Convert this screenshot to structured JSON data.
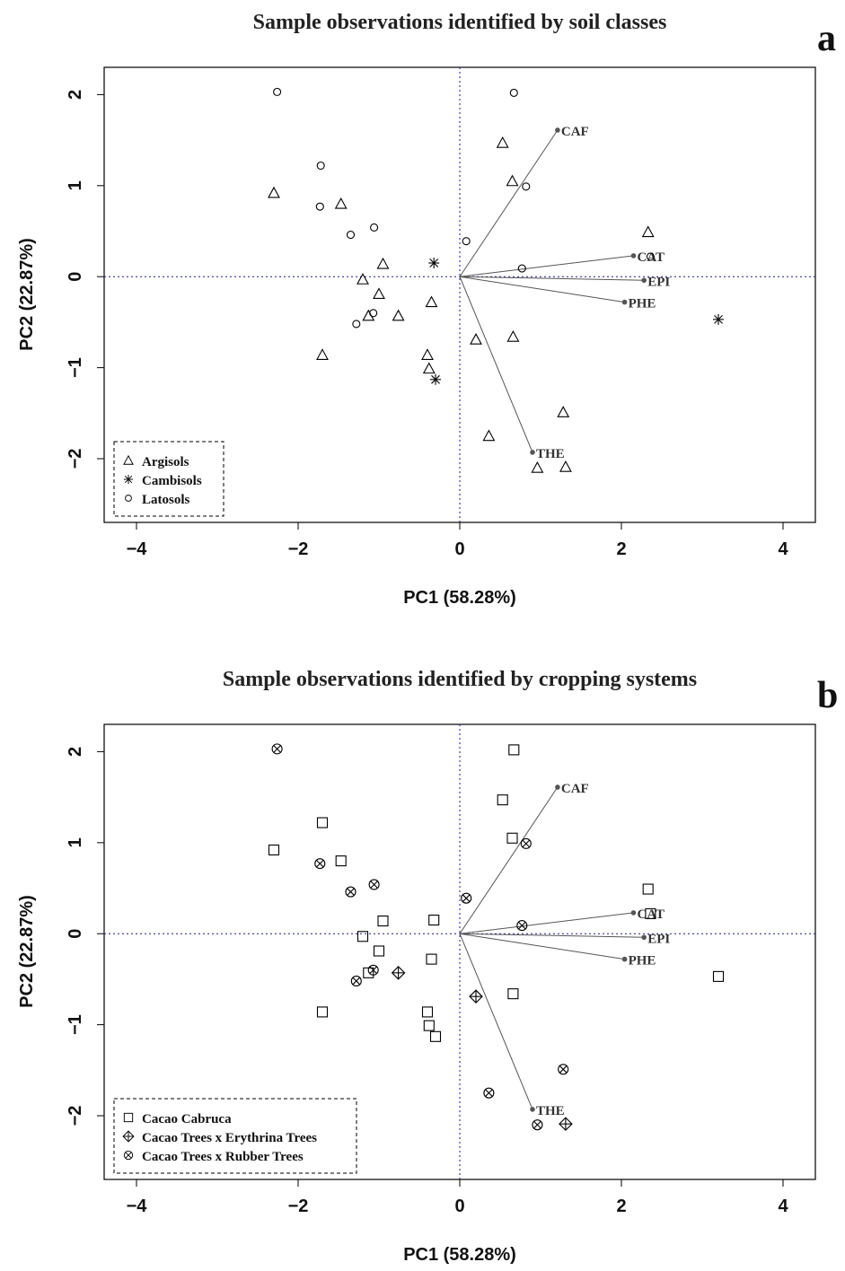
{
  "figure": {
    "panels": [
      {
        "label": "a"
      },
      {
        "label": "b"
      }
    ]
  },
  "chart_data": [
    {
      "type": "scatter",
      "title": "Sample observations identified by soil classes",
      "xlabel": "PC1 (58.28%)",
      "ylabel": "PC2 (22.87%)",
      "xlim": [
        -4.4,
        4.4
      ],
      "ylim": [
        -2.7,
        2.3
      ],
      "xticks": [
        -4,
        -2,
        0,
        2,
        4
      ],
      "yticks": [
        -2,
        -1,
        0,
        1,
        2
      ],
      "grid": false,
      "reference_lines": "dotted lines at x=0 and y=0",
      "legend_position": "bottom-left",
      "series": [
        {
          "name": "Argisols",
          "marker": "triangle",
          "points": [
            [
              -2.3,
              0.92
            ],
            [
              -1.47,
              0.8
            ],
            [
              -0.95,
              0.14
            ],
            [
              -1.2,
              -0.03
            ],
            [
              -1.0,
              -0.19
            ],
            [
              -1.13,
              -0.43
            ],
            [
              -0.76,
              -0.43
            ],
            [
              -0.35,
              -0.28
            ],
            [
              -1.7,
              -0.86
            ],
            [
              -0.4,
              -0.86
            ],
            [
              -0.38,
              -1.01
            ],
            [
              0.53,
              1.47
            ],
            [
              0.65,
              1.05
            ],
            [
              2.33,
              0.49
            ],
            [
              0.2,
              -0.69
            ],
            [
              0.66,
              -0.66
            ],
            [
              0.36,
              -1.75
            ],
            [
              1.28,
              -1.49
            ],
            [
              0.96,
              -2.1
            ],
            [
              1.31,
              -2.09
            ]
          ]
        },
        {
          "name": "Cambisols",
          "marker": "asterisk",
          "points": [
            [
              -0.32,
              0.15
            ],
            [
              -0.3,
              -1.13
            ],
            [
              3.2,
              -0.47
            ]
          ]
        },
        {
          "name": "Latosols",
          "marker": "circle",
          "points": [
            [
              -2.26,
              2.03
            ],
            [
              -1.72,
              1.22
            ],
            [
              -1.73,
              0.77
            ],
            [
              -1.35,
              0.46
            ],
            [
              -1.06,
              0.54
            ],
            [
              -1.07,
              -0.4
            ],
            [
              -1.28,
              -0.52
            ],
            [
              0.08,
              0.39
            ],
            [
              0.67,
              2.02
            ],
            [
              0.82,
              0.99
            ],
            [
              0.77,
              0.09
            ],
            [
              2.36,
              0.22
            ]
          ]
        }
      ],
      "loadings": [
        {
          "name": "CAF",
          "x": 1.21,
          "y": 1.61
        },
        {
          "name": "CAT",
          "x": 2.15,
          "y": 0.23
        },
        {
          "name": "EPI",
          "x": 2.28,
          "y": -0.04
        },
        {
          "name": "PHE",
          "x": 2.04,
          "y": -0.28
        },
        {
          "name": "THE",
          "x": 0.9,
          "y": -1.93
        }
      ]
    },
    {
      "type": "scatter",
      "title": "Sample observations identified by cropping systems",
      "xlabel": "PC1 (58.28%)",
      "ylabel": "PC2 (22.87%)",
      "xlim": [
        -4.4,
        4.4
      ],
      "ylim": [
        -2.7,
        2.3
      ],
      "xticks": [
        -4,
        -2,
        0,
        2,
        4
      ],
      "yticks": [
        -2,
        -1,
        0,
        1,
        2
      ],
      "grid": false,
      "reference_lines": "dotted lines at x=0 and y=0",
      "legend_position": "bottom-left",
      "series": [
        {
          "name": "Cacao Cabruca",
          "marker": "square",
          "points": [
            [
              -2.3,
              0.92
            ],
            [
              -1.7,
              1.22
            ],
            [
              -1.47,
              0.8
            ],
            [
              -0.95,
              0.14
            ],
            [
              -1.2,
              -0.03
            ],
            [
              -1.0,
              -0.19
            ],
            [
              -1.13,
              -0.43
            ],
            [
              -0.35,
              -0.28
            ],
            [
              -0.32,
              0.15
            ],
            [
              -1.7,
              -0.86
            ],
            [
              -0.4,
              -0.86
            ],
            [
              -0.38,
              -1.01
            ],
            [
              -0.3,
              -1.13
            ],
            [
              0.53,
              1.47
            ],
            [
              0.65,
              1.05
            ],
            [
              0.67,
              2.02
            ],
            [
              2.33,
              0.49
            ],
            [
              2.36,
              0.22
            ],
            [
              0.66,
              -0.66
            ],
            [
              3.2,
              -0.47
            ]
          ]
        },
        {
          "name": "Cacao Trees x Erythrina Trees",
          "marker": "diamond-plus",
          "points": [
            [
              -0.76,
              -0.43
            ],
            [
              0.2,
              -0.69
            ],
            [
              1.31,
              -2.09
            ]
          ]
        },
        {
          "name": "Cacao Trees x Rubber Trees",
          "marker": "circle-x",
          "points": [
            [
              -2.26,
              2.03
            ],
            [
              -1.73,
              0.77
            ],
            [
              -1.35,
              0.46
            ],
            [
              -1.06,
              0.54
            ],
            [
              -1.07,
              -0.4
            ],
            [
              -1.28,
              -0.52
            ],
            [
              0.08,
              0.39
            ],
            [
              0.82,
              0.99
            ],
            [
              0.77,
              0.09
            ],
            [
              0.36,
              -1.75
            ],
            [
              1.28,
              -1.49
            ],
            [
              0.96,
              -2.1
            ]
          ]
        }
      ],
      "loadings": [
        {
          "name": "CAF",
          "x": 1.21,
          "y": 1.61
        },
        {
          "name": "CAT",
          "x": 2.15,
          "y": 0.23
        },
        {
          "name": "EPI",
          "x": 2.28,
          "y": -0.04
        },
        {
          "name": "PHE",
          "x": 2.04,
          "y": -0.28
        },
        {
          "name": "THE",
          "x": 0.9,
          "y": -1.93
        }
      ]
    }
  ]
}
